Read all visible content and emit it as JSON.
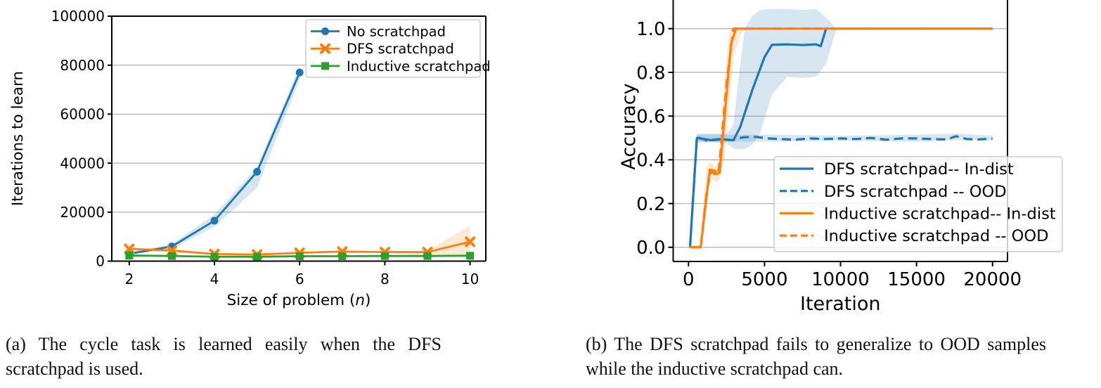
{
  "figure": {
    "caption_a": "(a) The cycle task is learned easily when the DFS scratchpad is used.",
    "caption_b": "(b) The DFS scratchpad fails to generalize to OOD samples while the inductive scratchpad can."
  },
  "colors": {
    "blue": "#1f77b4",
    "orange": "#ff7f0e",
    "green": "#2ca02c",
    "grid": "#b9b9b9",
    "spine": "#000000",
    "legend_border": "#cccccc",
    "text": "#000000"
  },
  "chart_data": [
    {
      "id": "panel-a",
      "type": "line",
      "title": "",
      "xlabel_parts": [
        "Size of problem (",
        "n",
        ")"
      ],
      "ylabel": "Iterations to learn",
      "xlim": [
        1.59,
        10.37
      ],
      "ylim": [
        0,
        100000
      ],
      "grid": "horizontal",
      "legend_position": "upper right",
      "xticks": {
        "values": [
          2,
          4,
          6,
          8,
          10
        ],
        "labels": [
          "2",
          "4",
          "6",
          "8",
          "10"
        ]
      },
      "yticks": {
        "values": [
          0,
          20000,
          40000,
          60000,
          80000,
          100000
        ],
        "labels": [
          "0",
          "20000",
          "40000",
          "60000",
          "80000",
          "100000"
        ]
      },
      "series": [
        {
          "name": "No scratchpad",
          "color": "blue",
          "style": "solid",
          "marker": "circle",
          "x": [
            2,
            3,
            4,
            5,
            6
          ],
          "y": [
            3000,
            6000,
            16500,
            36500,
            77000
          ],
          "band": {
            "x": [
              2,
              3,
              4,
              5,
              6
            ],
            "lower": [
              2500,
              5000,
              14000,
              30000,
              74000
            ],
            "upper": [
              3600,
              7000,
              19000,
              38500,
              79500
            ]
          }
        },
        {
          "name": "DFS scratchpad",
          "color": "orange",
          "style": "solid",
          "marker": "x",
          "x": [
            2,
            3,
            4,
            5,
            6,
            7,
            8,
            9,
            10
          ],
          "y": [
            5000,
            4300,
            2900,
            2700,
            3400,
            3900,
            3700,
            3700,
            7900
          ],
          "band": {
            "x": [
              2,
              3,
              4,
              5,
              6,
              7,
              8,
              9,
              10
            ],
            "lower": [
              4400,
              3800,
              2500,
              2300,
              3000,
              3500,
              3300,
              2500,
              1800
            ],
            "upper": [
              5600,
              4800,
              3300,
              3100,
              3800,
              4300,
              4100,
              4200,
              14500
            ]
          }
        },
        {
          "name": "Inductive scratchpad",
          "color": "green",
          "style": "solid",
          "marker": "square",
          "x": [
            2,
            3,
            4,
            5,
            6,
            7,
            8,
            9,
            10
          ],
          "y": [
            2300,
            2100,
            1800,
            1800,
            2000,
            2000,
            2100,
            2100,
            2200
          ],
          "band": {
            "x": [
              2,
              3,
              4,
              5,
              6,
              7,
              8,
              9,
              10
            ],
            "lower": [
              2100,
              1900,
              1600,
              1600,
              1800,
              1800,
              1900,
              1900,
              2000
            ],
            "upper": [
              2500,
              2300,
              2000,
              2000,
              2200,
              2200,
              2300,
              2300,
              2400
            ]
          }
        }
      ]
    },
    {
      "id": "panel-b",
      "type": "line",
      "title": "",
      "xlabel_parts": [
        "Iteration"
      ],
      "ylabel": "Accuracy",
      "xlim": [
        -1008,
        20984
      ],
      "ylim": [
        -0.065,
        1.131
      ],
      "grid": "horizontal",
      "legend_position": "lower right",
      "xticks": {
        "values": [
          0,
          5000,
          10000,
          15000,
          20000
        ],
        "labels": [
          "0",
          "5000",
          "10000",
          "15000",
          "20000"
        ]
      },
      "yticks": {
        "values": [
          0.0,
          0.2,
          0.4,
          0.6,
          0.8,
          1.0
        ],
        "labels": [
          "0.0",
          "0.2",
          "0.4",
          "0.6",
          "0.8",
          "1.0"
        ]
      },
      "series": [
        {
          "name": "DFS scratchpad-- In-dist",
          "color": "blue",
          "style": "solid",
          "marker": "none",
          "x": [
            100,
            550,
            1500,
            2300,
            2960,
            3400,
            4200,
            5000,
            5490,
            6500,
            7500,
            8400,
            8700,
            9050,
            20000
          ],
          "y": [
            0.0,
            0.5,
            0.49,
            0.493,
            0.49,
            0.55,
            0.72,
            0.87,
            0.926,
            0.928,
            0.925,
            0.928,
            0.92,
            1.0,
            1.0
          ],
          "band": {
            "x": [
              550,
              1500,
              2500,
              2960,
              3300,
              3700,
              4200,
              4700,
              5500,
              6500,
              7500,
              8400,
              9050,
              9740,
              10500
            ],
            "lower": [
              0.48,
              0.48,
              0.477,
              0.45,
              0.448,
              0.45,
              0.47,
              0.52,
              0.7,
              0.78,
              0.775,
              0.78,
              0.84,
              1.0,
              1.0
            ],
            "upper": [
              0.52,
              0.52,
              0.52,
              0.56,
              0.78,
              1.0,
              1.06,
              1.085,
              1.09,
              1.09,
              1.085,
              1.09,
              1.05,
              1.0,
              1.0
            ]
          }
        },
        {
          "name": "DFS scratchpad -- OOD",
          "color": "blue",
          "style": "dashed",
          "marker": "none",
          "x": [
            100,
            550,
            1200,
            2000,
            2800,
            3600,
            4400,
            5200,
            6000,
            7000,
            8000,
            9000,
            10000,
            11000,
            12000,
            13000,
            14000,
            15000,
            16000,
            17000,
            17600,
            18300,
            19000,
            20000
          ],
          "y": [
            0.0,
            0.505,
            0.488,
            0.495,
            0.49,
            0.503,
            0.505,
            0.498,
            0.495,
            0.492,
            0.498,
            0.495,
            0.498,
            0.495,
            0.5,
            0.492,
            0.498,
            0.498,
            0.495,
            0.493,
            0.508,
            0.495,
            0.493,
            0.497
          ],
          "band": {
            "x": [
              550,
              5000,
              10000,
              15000,
              17600,
              20000
            ],
            "lower": [
              0.483,
              0.483,
              0.487,
              0.483,
              0.49,
              0.487
            ],
            "upper": [
              0.515,
              0.515,
              0.51,
              0.515,
              0.52,
              0.51
            ]
          }
        },
        {
          "name": "Inductive scratchpad-- In-dist",
          "color": "orange",
          "style": "solid",
          "marker": "none",
          "x": [
            100,
            800,
            1100,
            1400,
            1750,
            1820,
            2050,
            2400,
            2800,
            3120,
            20000
          ],
          "y": [
            0.0,
            0.0,
            0.18,
            0.355,
            0.35,
            0.335,
            0.34,
            0.62,
            0.93,
            1.0,
            1.0
          ],
          "band": {
            "x": [
              800,
              1050,
              1200,
              1400,
              1800,
              2050,
              2400,
              2700,
              3000,
              3400,
              3800
            ],
            "lower": [
              0.0,
              0.12,
              0.27,
              0.315,
              0.3,
              0.31,
              0.42,
              0.68,
              0.88,
              0.97,
              1.0
            ],
            "upper": [
              0.0,
              0.25,
              0.37,
              0.39,
              0.365,
              0.42,
              0.78,
              1.0,
              1.0,
              1.0,
              1.0
            ]
          }
        },
        {
          "name": "Inductive scratchpad -- OOD",
          "color": "orange",
          "style": "dashed",
          "marker": "none",
          "x": [
            100,
            800,
            1200,
            1500,
            1800,
            2000,
            2500,
            2950,
            20000
          ],
          "y": [
            0.0,
            0.0,
            0.26,
            0.35,
            0.33,
            0.36,
            0.75,
            1.0,
            1.0
          ]
        }
      ]
    }
  ]
}
